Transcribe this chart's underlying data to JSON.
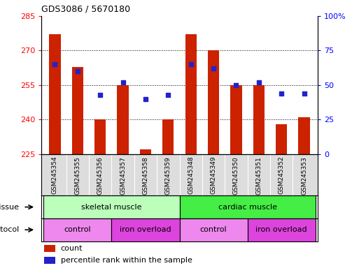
{
  "title": "GDS3086 / 5670180",
  "samples": [
    "GSM245354",
    "GSM245355",
    "GSM245356",
    "GSM245357",
    "GSM245358",
    "GSM245359",
    "GSM245348",
    "GSM245349",
    "GSM245350",
    "GSM245351",
    "GSM245352",
    "GSM245353"
  ],
  "count_values": [
    277,
    263,
    240,
    255,
    227,
    240,
    277,
    270,
    255,
    255,
    238,
    241
  ],
  "percentile_values": [
    65,
    60,
    43,
    52,
    40,
    43,
    65,
    62,
    50,
    52,
    44,
    44
  ],
  "ylim_left": [
    225,
    285
  ],
  "ylim_right": [
    0,
    100
  ],
  "yticks_left": [
    225,
    240,
    255,
    270,
    285
  ],
  "yticks_right": [
    0,
    25,
    50,
    75,
    100
  ],
  "ytick_labels_right": [
    "0",
    "25",
    "50",
    "75",
    "100%"
  ],
  "bar_color": "#cc2200",
  "dot_color": "#2222cc",
  "tissue_groups": [
    {
      "label": "skeletal muscle",
      "start": 0,
      "end": 6,
      "color": "#bbffbb"
    },
    {
      "label": "cardiac muscle",
      "start": 6,
      "end": 12,
      "color": "#44ee44"
    }
  ],
  "protocol_groups": [
    {
      "label": "control",
      "start": 0,
      "end": 3,
      "color": "#ee88ee"
    },
    {
      "label": "iron overload",
      "start": 3,
      "end": 6,
      "color": "#dd44dd"
    },
    {
      "label": "control",
      "start": 6,
      "end": 9,
      "color": "#ee88ee"
    },
    {
      "label": "iron overload",
      "start": 9,
      "end": 12,
      "color": "#dd44dd"
    }
  ],
  "legend_count_label": "count",
  "legend_pct_label": "percentile rank within the sample",
  "bar_width": 0.5,
  "bar_bottom": 225,
  "tissue_row_label": "tissue",
  "protocol_row_label": "protocol",
  "sample_box_color": "#dddddd",
  "grid_yticks": [
    240,
    255,
    270
  ]
}
